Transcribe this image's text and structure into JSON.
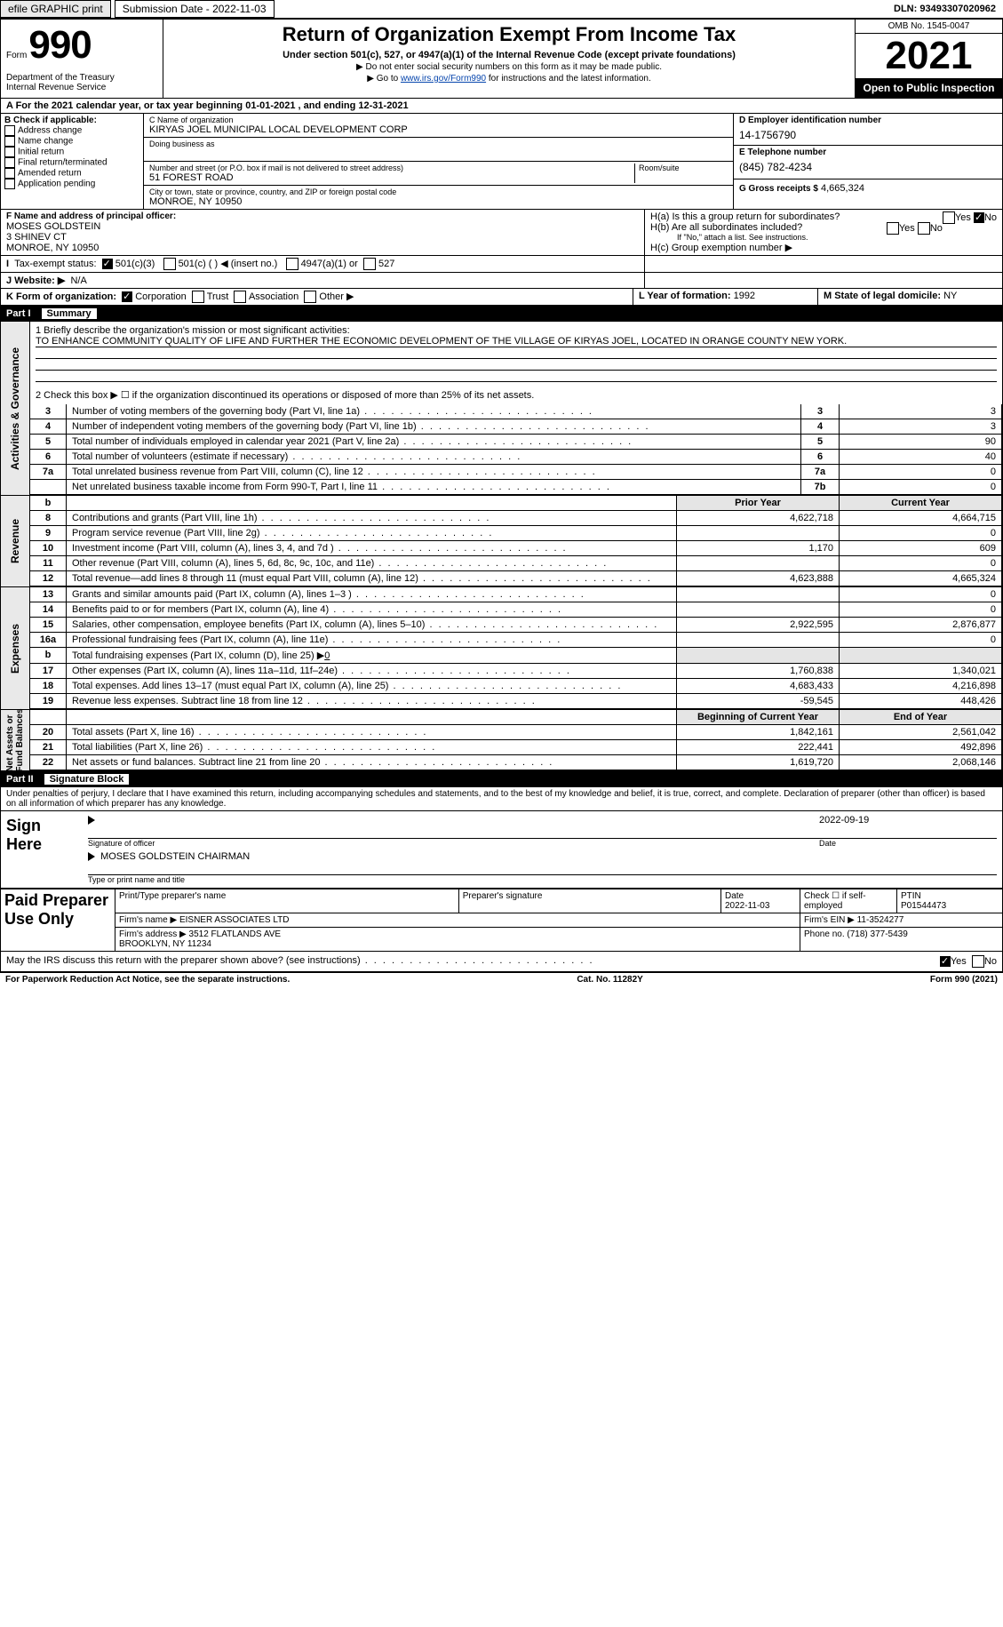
{
  "topbar": {
    "efile": "efile GRAPHIC print",
    "submission": "Submission Date - 2022-11-03",
    "dln": "DLN: 93493307020962"
  },
  "header": {
    "form_word": "Form",
    "form_num": "990",
    "dept": "Department of the Treasury\nInternal Revenue Service",
    "title": "Return of Organization Exempt From Income Tax",
    "subtitle": "Under section 501(c), 527, or 4947(a)(1) of the Internal Revenue Code (except private foundations)",
    "note1": "▶ Do not enter social security numbers on this form as it may be made public.",
    "note2_pre": "▶ Go to ",
    "note2_link": "www.irs.gov/Form990",
    "note2_post": " for instructions and the latest information.",
    "omb": "OMB No. 1545-0047",
    "year": "2021",
    "open": "Open to Public Inspection"
  },
  "lineA": {
    "text_pre": "A For the 2021 calendar year, or tax year beginning ",
    "begin": "01-01-2021",
    "mid": " , and ending ",
    "end": "12-31-2021"
  },
  "colB": {
    "hdr": "B Check if applicable:",
    "items": [
      "Address change",
      "Name change",
      "Initial return",
      "Final return/terminated",
      "Amended return",
      "Application pending"
    ]
  },
  "cblock": {
    "name_lbl": "C Name of organization",
    "name": "KIRYAS JOEL MUNICIPAL LOCAL DEVELOPMENT CORP",
    "dba_lbl": "Doing business as",
    "addr_lbl": "Number and street (or P.O. box if mail is not delivered to street address)",
    "addr": "51 FOREST ROAD",
    "room_lbl": "Room/suite",
    "city_lbl": "City or town, state or province, country, and ZIP or foreign postal code",
    "city": "MONROE, NY  10950"
  },
  "colD": {
    "ein_lbl": "D Employer identification number",
    "ein": "14-1756790",
    "tel_lbl": "E Telephone number",
    "tel": "(845) 782-4234",
    "gross_lbl": "G Gross receipts $",
    "gross": "4,665,324"
  },
  "fblock": {
    "lbl": "F Name and address of principal officer:",
    "name": "MOSES GOLDSTEIN",
    "addr1": "3 SHINEV CT",
    "addr2": "MONROE, NY  10950"
  },
  "hblock": {
    "ha": "H(a) Is this a group return for subordinates?",
    "hb": "H(b) Are all subordinates included?",
    "hb_note": "If \"No,\" attach a list. See instructions.",
    "hc": "H(c) Group exemption number ▶",
    "yes": "Yes",
    "no": "No"
  },
  "i": {
    "lbl": "Tax-exempt status:",
    "c3": "501(c)(3)",
    "c": "501(c) (   ) ◀ (insert no.)",
    "a1": "4947(a)(1) or",
    "s527": "527"
  },
  "j": {
    "lbl": "J   Website: ▶",
    "val": "N/A"
  },
  "k": {
    "lbl": "K Form of organization:",
    "corp": "Corporation",
    "trust": "Trust",
    "assoc": "Association",
    "other": "Other ▶",
    "l_lbl": "L Year of formation:",
    "l_val": "1992",
    "m_lbl": "M State of legal domicile:",
    "m_val": "NY"
  },
  "part1": {
    "num": "Part I",
    "title": "Summary"
  },
  "summary": {
    "line1_lbl": "1  Briefly describe the organization's mission or most significant activities:",
    "line1_val": "TO ENHANCE COMMUNITY QUALITY OF LIFE AND FURTHER THE ECONOMIC DEVELOPMENT OF THE VILLAGE OF KIRYAS JOEL, LOCATED IN ORANGE COUNTY NEW YORK.",
    "line2": "2  Check this box ▶ ☐ if the organization discontinued its operations or disposed of more than 25% of its net assets.",
    "rows": [
      {
        "n": "3",
        "t": "Number of voting members of the governing body (Part VI, line 1a)",
        "b": "3",
        "v": "3"
      },
      {
        "n": "4",
        "t": "Number of independent voting members of the governing body (Part VI, line 1b)",
        "b": "4",
        "v": "3"
      },
      {
        "n": "5",
        "t": "Total number of individuals employed in calendar year 2021 (Part V, line 2a)",
        "b": "5",
        "v": "90"
      },
      {
        "n": "6",
        "t": "Total number of volunteers (estimate if necessary)",
        "b": "6",
        "v": "40"
      },
      {
        "n": "7a",
        "t": "Total unrelated business revenue from Part VIII, column (C), line 12",
        "b": "7a",
        "v": "0"
      },
      {
        "n": "",
        "t": "Net unrelated business taxable income from Form 990-T, Part I, line 11",
        "b": "7b",
        "v": "0"
      }
    ]
  },
  "revenue": {
    "header_prior": "Prior Year",
    "header_curr": "Current Year",
    "rows": [
      {
        "n": "8",
        "t": "Contributions and grants (Part VIII, line 1h)",
        "p": "4,622,718",
        "c": "4,664,715"
      },
      {
        "n": "9",
        "t": "Program service revenue (Part VIII, line 2g)",
        "p": "",
        "c": "0"
      },
      {
        "n": "10",
        "t": "Investment income (Part VIII, column (A), lines 3, 4, and 7d )",
        "p": "1,170",
        "c": "609"
      },
      {
        "n": "11",
        "t": "Other revenue (Part VIII, column (A), lines 5, 6d, 8c, 9c, 10c, and 11e)",
        "p": "",
        "c": "0"
      },
      {
        "n": "12",
        "t": "Total revenue—add lines 8 through 11 (must equal Part VIII, column (A), line 12)",
        "p": "4,623,888",
        "c": "4,665,324"
      }
    ]
  },
  "expenses": {
    "rows": [
      {
        "n": "13",
        "t": "Grants and similar amounts paid (Part IX, column (A), lines 1–3 )",
        "p": "",
        "c": "0"
      },
      {
        "n": "14",
        "t": "Benefits paid to or for members (Part IX, column (A), line 4)",
        "p": "",
        "c": "0"
      },
      {
        "n": "15",
        "t": "Salaries, other compensation, employee benefits (Part IX, column (A), lines 5–10)",
        "p": "2,922,595",
        "c": "2,876,877"
      },
      {
        "n": "16a",
        "t": "Professional fundraising fees (Part IX, column (A), line 11e)",
        "p": "",
        "c": "0"
      },
      {
        "n": "b",
        "t": "Total fundraising expenses (Part IX, column (D), line 25) ▶",
        "v": "0",
        "grey": true
      },
      {
        "n": "17",
        "t": "Other expenses (Part IX, column (A), lines 11a–11d, 11f–24e)",
        "p": "1,760,838",
        "c": "1,340,021"
      },
      {
        "n": "18",
        "t": "Total expenses. Add lines 13–17 (must equal Part IX, column (A), line 25)",
        "p": "4,683,433",
        "c": "4,216,898"
      },
      {
        "n": "19",
        "t": "Revenue less expenses. Subtract line 18 from line 12",
        "p": "-59,545",
        "c": "448,426"
      }
    ]
  },
  "netassets": {
    "header_prior": "Beginning of Current Year",
    "header_curr": "End of Year",
    "rows": [
      {
        "n": "20",
        "t": "Total assets (Part X, line 16)",
        "p": "1,842,161",
        "c": "2,561,042"
      },
      {
        "n": "21",
        "t": "Total liabilities (Part X, line 26)",
        "p": "222,441",
        "c": "492,896"
      },
      {
        "n": "22",
        "t": "Net assets or fund balances. Subtract line 21 from line 20",
        "p": "1,619,720",
        "c": "2,068,146"
      }
    ]
  },
  "sidelabels": {
    "ag": "Activities & Governance",
    "rev": "Revenue",
    "exp": "Expenses",
    "na": "Net Assets or\nFund Balances"
  },
  "part2": {
    "num": "Part II",
    "title": "Signature Block"
  },
  "sig": {
    "decl": "Under penalties of perjury, I declare that I have examined this return, including accompanying schedules and statements, and to the best of my knowledge and belief, it is true, correct, and complete. Declaration of preparer (other than officer) is based on all information of which preparer has any knowledge.",
    "sign_here": "Sign Here",
    "sig_officer": "Signature of officer",
    "sig_date": "2022-09-19",
    "date_lbl": "Date",
    "name_title": "MOSES GOLDSTEIN  CHAIRMAN",
    "name_title_lbl": "Type or print name and title"
  },
  "prep": {
    "label": "Paid Preparer Use Only",
    "print_lbl": "Print/Type preparer's name",
    "sig_lbl": "Preparer's signature",
    "date_lbl": "Date",
    "date": "2022-11-03",
    "check_lbl": "Check ☐ if self-employed",
    "ptin_lbl": "PTIN",
    "ptin": "P01544473",
    "firm_name_lbl": "Firm's name    ▶",
    "firm_name": "EISNER ASSOCIATES LTD",
    "firm_ein_lbl": "Firm's EIN ▶",
    "firm_ein": "11-3524277",
    "firm_addr_lbl": "Firm's address ▶",
    "firm_addr": "3512 FLATLANDS AVE\nBROOKLYN, NY  11234",
    "phone_lbl": "Phone no.",
    "phone": "(718) 377-5439"
  },
  "may": {
    "q": "May the IRS discuss this return with the preparer shown above? (see instructions)",
    "yes": "Yes",
    "no": "No"
  },
  "footer": {
    "left": "For Paperwork Reduction Act Notice, see the separate instructions.",
    "mid": "Cat. No. 11282Y",
    "right": "Form 990 (2021)"
  }
}
